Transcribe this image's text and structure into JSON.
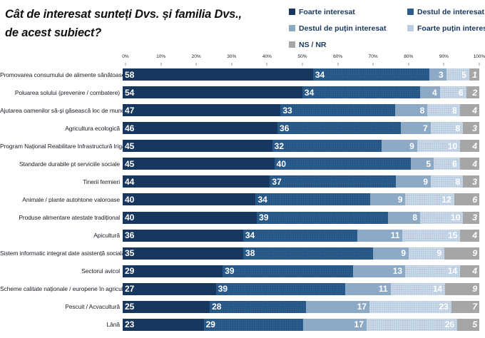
{
  "title": {
    "line1": "Cât de interesat sunteți Dvs. și familia Dvs.,",
    "line2": "de acest subiect?"
  },
  "legend": [
    {
      "key": "foarte-interesat",
      "label": "Foarte interesat",
      "color": "#17375E"
    },
    {
      "key": "destul-de-interesat",
      "label": "Destul de interesat",
      "color": "#2B5C8E"
    },
    {
      "key": "destul-de-putin-interesat",
      "label": "Destul de puțin interesat",
      "color": "#8CA9C5"
    },
    {
      "key": "foarte-putin-interesat",
      "label": "Foarte puțin interesat",
      "color": "#BACDE1"
    },
    {
      "key": "ns-nr",
      "label": "NS / NR",
      "color": "#A6A6A6"
    }
  ],
  "colors": {
    "legend_text": "#17375E",
    "bar_value_text": "#FFFFFF",
    "title_text": "#111111"
  },
  "axis": {
    "ticks": [
      "0%",
      "10%",
      "20%",
      "30%",
      "40%",
      "50%",
      "60%",
      "70%",
      "80%",
      "90%",
      "100%"
    ]
  },
  "chart_data": {
    "type": "bar",
    "orientation": "horizontal",
    "stacked": true,
    "title": "Cât de interesat sunteți Dvs. și familia Dvs., de acest subiect?",
    "xlabel": "",
    "ylabel": "",
    "xlim": [
      0,
      100
    ],
    "grid": false,
    "legend_position": "top-right",
    "categories": [
      "Promovarea consumului de alimente sănătoase",
      "Poluarea solului (prevenire / combatere)",
      "Ajutarea oamenilor să-și găsească loc de muncă",
      "Agricultura ecologică",
      "Program Național Reabilitare Infrastructură Irigații",
      "Standarde durabile pt serviciile sociale",
      "Tinerii fermieri",
      "Animale / plante autohtone valoroase",
      "Produse alimentare atestate tradițional",
      "Apicultură",
      "Sistem informatic integrat date asistență socială",
      "Sectorul avicol",
      "Scheme calitate naționale / europene în agricultură",
      "Pescuit / Acvacultură",
      "Lână"
    ],
    "series": [
      {
        "name": "Foarte interesat",
        "values": [
          58,
          54,
          47,
          46,
          45,
          45,
          44,
          40,
          40,
          36,
          35,
          29,
          27,
          25,
          23
        ]
      },
      {
        "name": "Destul de interesat",
        "values": [
          34,
          34,
          33,
          36,
          32,
          40,
          37,
          34,
          39,
          34,
          38,
          39,
          39,
          28,
          29
        ]
      },
      {
        "name": "Destul de puțin interesat",
        "values": [
          3,
          4,
          8,
          7,
          9,
          5,
          9,
          9,
          8,
          11,
          9,
          13,
          11,
          17,
          17
        ]
      },
      {
        "name": "Foarte puțin interesat",
        "values": [
          5,
          6,
          8,
          8,
          10,
          6,
          8,
          12,
          10,
          15,
          9,
          14,
          14,
          23,
          26
        ]
      },
      {
        "name": "NS / NR",
        "values": [
          1,
          2,
          4,
          3,
          4,
          4,
          3,
          6,
          3,
          4,
          9,
          4,
          9,
          7,
          5
        ]
      }
    ]
  }
}
